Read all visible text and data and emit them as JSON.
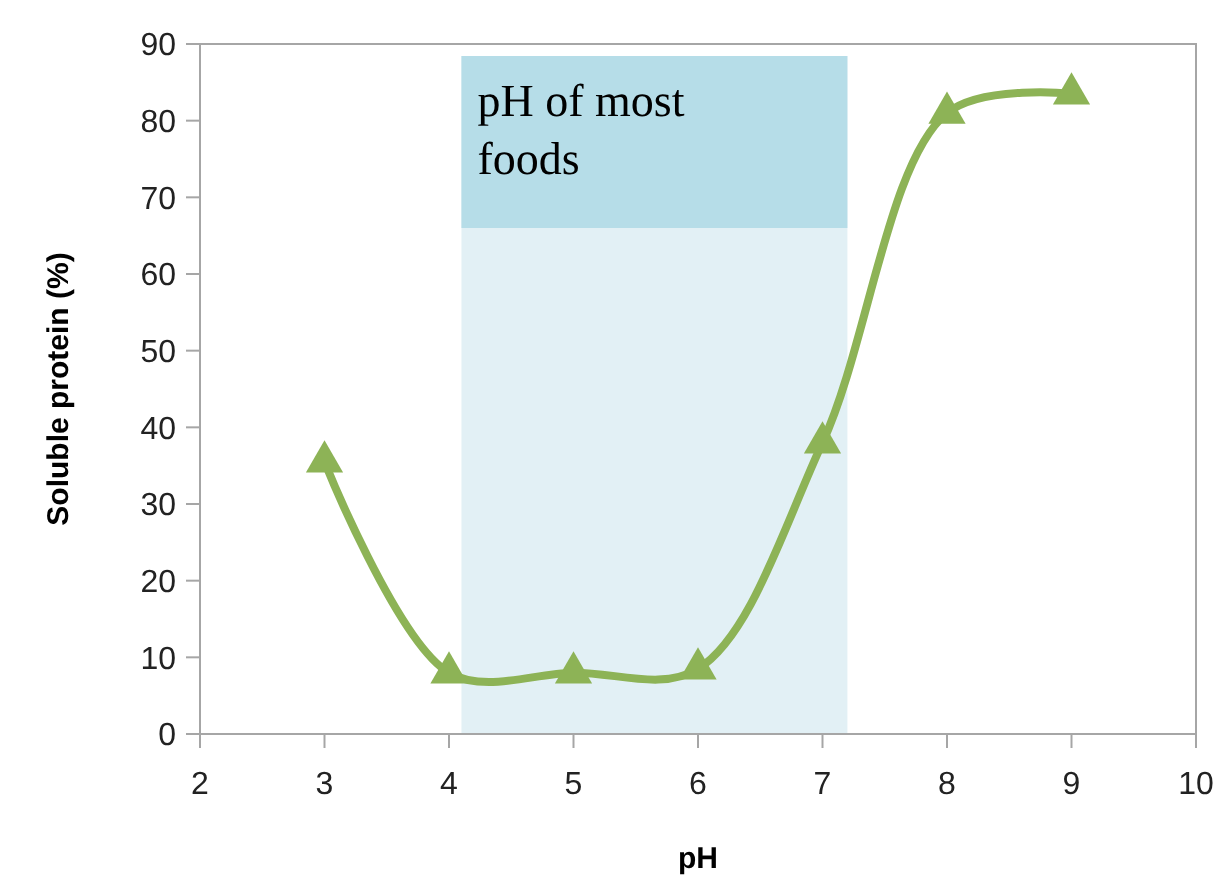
{
  "chart_data": {
    "type": "line",
    "xlabel": "pH",
    "ylabel": "Soluble protein (%)",
    "x": [
      3,
      4,
      5,
      6,
      7,
      8,
      9
    ],
    "series": [
      {
        "color": "#8db356",
        "values": [
          35.5,
          8,
          8,
          8.5,
          38,
          81,
          83.5
        ]
      }
    ],
    "xlim": [
      2,
      10
    ],
    "xticks": [
      2,
      3,
      4,
      5,
      6,
      7,
      8,
      9,
      10
    ],
    "ylim": [
      0,
      90
    ],
    "yticks": [
      0,
      10,
      20,
      30,
      40,
      50,
      60,
      70,
      80,
      90
    ],
    "grid": false,
    "marker": "triangle",
    "line_style": "solid",
    "bands": [
      {
        "axis": "x",
        "from": 4.1,
        "to": 7.2,
        "label": "pH of most foods",
        "color": "#e2f0f5"
      }
    ]
  }
}
